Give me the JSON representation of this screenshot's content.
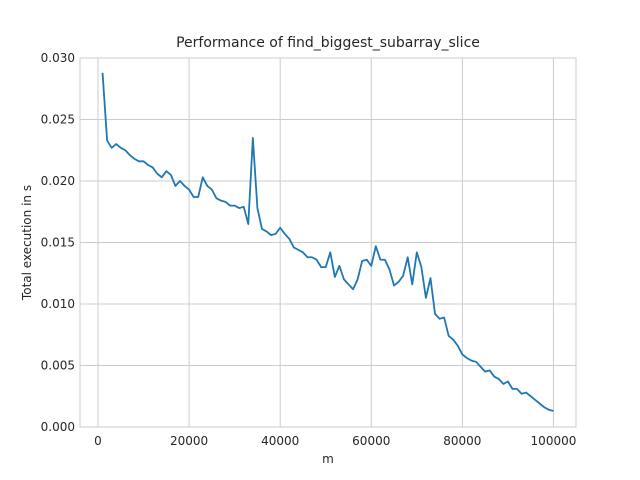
{
  "chart_data": {
    "type": "line",
    "title": "Performance of find_biggest_subarray_slice",
    "xlabel": "m",
    "ylabel": "Total execution in s",
    "xlim": [
      -3950,
      104950
    ],
    "ylim": [
      0,
      0.03
    ],
    "xticks": [
      0,
      20000,
      40000,
      60000,
      80000,
      100000
    ],
    "xtick_labels": [
      "0",
      "20000",
      "40000",
      "60000",
      "80000",
      "100000"
    ],
    "yticks": [
      0,
      0.005,
      0.01,
      0.015,
      0.02,
      0.025,
      0.03
    ],
    "ytick_labels": [
      "0.000",
      "0.005",
      "0.010",
      "0.015",
      "0.020",
      "0.025",
      "0.030"
    ],
    "grid": true,
    "series": [
      {
        "color": "#1f77b4",
        "x": [
          1000,
          2000,
          3000,
          4000,
          5000,
          6000,
          7000,
          8000,
          9000,
          10000,
          11000,
          12000,
          13000,
          14000,
          15000,
          16000,
          17000,
          18000,
          19000,
          20000,
          21000,
          22000,
          23000,
          24000,
          25000,
          26000,
          27000,
          28000,
          29000,
          30000,
          31000,
          32000,
          33000,
          34000,
          35000,
          36000,
          37000,
          38000,
          39000,
          40000,
          41000,
          42000,
          43000,
          44000,
          45000,
          46000,
          47000,
          48000,
          49000,
          50000,
          51000,
          52000,
          53000,
          54000,
          55000,
          56000,
          57000,
          58000,
          59000,
          60000,
          61000,
          62000,
          63000,
          64000,
          65000,
          66000,
          67000,
          68000,
          69000,
          70000,
          71000,
          72000,
          73000,
          74000,
          75000,
          76000,
          77000,
          78000,
          79000,
          80000,
          81000,
          82000,
          83000,
          84000,
          85000,
          86000,
          87000,
          88000,
          89000,
          90000,
          91000,
          92000,
          93000,
          94000,
          95000,
          96000,
          97000,
          98000,
          99000,
          100000
        ],
        "y": [
          0.0288,
          0.0233,
          0.0227,
          0.023,
          0.0227,
          0.0225,
          0.0221,
          0.0218,
          0.0216,
          0.0216,
          0.0213,
          0.0211,
          0.0206,
          0.0203,
          0.0208,
          0.0205,
          0.0196,
          0.02,
          0.0196,
          0.0193,
          0.0187,
          0.0187,
          0.0203,
          0.0196,
          0.0193,
          0.0186,
          0.0184,
          0.0183,
          0.018,
          0.018,
          0.0178,
          0.0179,
          0.0165,
          0.0235,
          0.0178,
          0.0161,
          0.0159,
          0.0156,
          0.0157,
          0.0162,
          0.0157,
          0.0153,
          0.0146,
          0.0144,
          0.0142,
          0.0138,
          0.0138,
          0.0136,
          0.013,
          0.013,
          0.0142,
          0.0122,
          0.0131,
          0.012,
          0.0116,
          0.0112,
          0.012,
          0.0135,
          0.0136,
          0.0131,
          0.0147,
          0.0136,
          0.0136,
          0.0128,
          0.0115,
          0.0118,
          0.0123,
          0.0138,
          0.0116,
          0.0142,
          0.013,
          0.0105,
          0.0121,
          0.0092,
          0.0088,
          0.0089,
          0.0074,
          0.0071,
          0.0066,
          0.0059,
          0.0056,
          0.0054,
          0.0053,
          0.0049,
          0.0045,
          0.0046,
          0.0041,
          0.0039,
          0.0035,
          0.0037,
          0.0031,
          0.0031,
          0.0027,
          0.0028,
          0.0025,
          0.0022,
          0.0019,
          0.0016,
          0.0014,
          0.0013
        ]
      }
    ]
  }
}
